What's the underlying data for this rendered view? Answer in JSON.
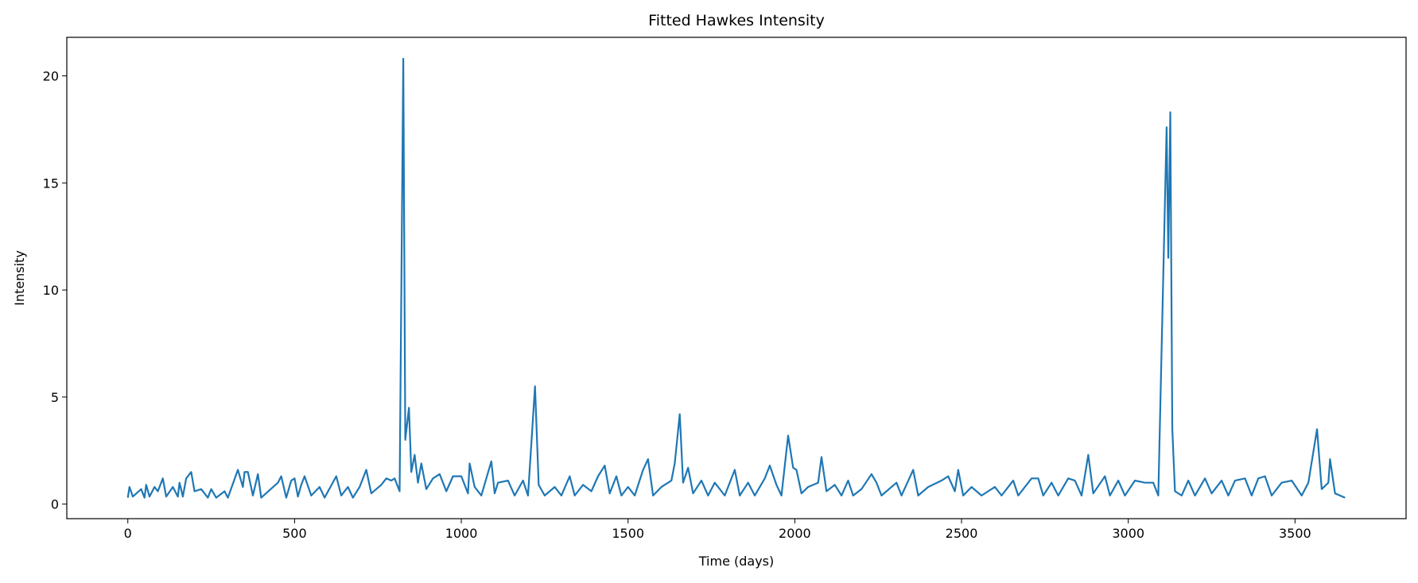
{
  "chart_data": {
    "type": "line",
    "title": "Fitted Hawkes Intensity",
    "x_label": "Time (days)",
    "y_label": "Intensity",
    "x": [
      0,
      5,
      15,
      40,
      50,
      55,
      65,
      80,
      90,
      105,
      115,
      135,
      150,
      155,
      165,
      175,
      190,
      200,
      220,
      240,
      250,
      265,
      290,
      300,
      330,
      345,
      350,
      360,
      375,
      390,
      400,
      450,
      460,
      475,
      490,
      500,
      510,
      520,
      530,
      550,
      575,
      590,
      625,
      640,
      660,
      675,
      695,
      715,
      730,
      760,
      775,
      790,
      800,
      815,
      826,
      832,
      843,
      850,
      860,
      870,
      880,
      895,
      915,
      935,
      955,
      975,
      1000,
      1020,
      1025,
      1040,
      1060,
      1090,
      1100,
      1110,
      1140,
      1160,
      1185,
      1200,
      1221,
      1232,
      1250,
      1280,
      1300,
      1325,
      1340,
      1365,
      1390,
      1410,
      1430,
      1445,
      1465,
      1480,
      1500,
      1520,
      1545,
      1560,
      1575,
      1600,
      1630,
      1640,
      1655,
      1665,
      1680,
      1695,
      1720,
      1740,
      1760,
      1790,
      1820,
      1835,
      1860,
      1880,
      1910,
      1925,
      1945,
      1960,
      1980,
      1995,
      2005,
      2020,
      2040,
      2070,
      2080,
      2095,
      2120,
      2140,
      2160,
      2175,
      2200,
      2230,
      2245,
      2260,
      2305,
      2320,
      2355,
      2370,
      2400,
      2440,
      2460,
      2480,
      2490,
      2505,
      2530,
      2560,
      2600,
      2620,
      2655,
      2670,
      2710,
      2730,
      2745,
      2770,
      2790,
      2820,
      2840,
      2860,
      2880,
      2895,
      2930,
      2945,
      2970,
      2990,
      3020,
      3050,
      3075,
      3090,
      3115,
      3120,
      3126,
      3132,
      3140,
      3160,
      3180,
      3200,
      3230,
      3250,
      3280,
      3300,
      3320,
      3350,
      3370,
      3390,
      3410,
      3430,
      3460,
      3490,
      3520,
      3540,
      3566,
      3580,
      3600,
      3605,
      3620,
      3650
    ],
    "series": [
      {
        "name": "Intensity",
        "color": "#1f77b4",
        "values": [
          0.3,
          0.8,
          0.35,
          0.7,
          0.3,
          0.9,
          0.35,
          0.8,
          0.6,
          1.2,
          0.35,
          0.8,
          0.35,
          1.0,
          0.35,
          1.2,
          1.5,
          0.6,
          0.7,
          0.3,
          0.7,
          0.3,
          0.6,
          0.3,
          1.6,
          0.8,
          1.5,
          1.5,
          0.4,
          1.4,
          0.3,
          1.0,
          1.3,
          0.3,
          1.1,
          1.2,
          0.35,
          0.9,
          1.3,
          0.4,
          0.8,
          0.3,
          1.3,
          0.4,
          0.8,
          0.3,
          0.8,
          1.6,
          0.5,
          0.9,
          1.2,
          1.1,
          1.2,
          0.6,
          20.8,
          3,
          4.5,
          1.5,
          2.3,
          1,
          1.9,
          0.7,
          1.2,
          1.4,
          0.6,
          1.3,
          1.3,
          0.5,
          1.9,
          0.8,
          0.4,
          2.0,
          0.5,
          1.0,
          1.1,
          0.4,
          1.1,
          0.4,
          5.5,
          0.9,
          0.4,
          0.8,
          0.4,
          1.3,
          0.4,
          0.9,
          0.6,
          1.3,
          1.8,
          0.5,
          1.3,
          0.4,
          0.8,
          0.4,
          1.6,
          2.1,
          0.4,
          0.8,
          1.1,
          1.9,
          4.2,
          1.0,
          1.7,
          0.5,
          1.1,
          0.4,
          1.0,
          0.4,
          1.6,
          0.4,
          1.0,
          0.4,
          1.2,
          1.8,
          0.9,
          0.4,
          3.2,
          1.7,
          1.6,
          0.5,
          0.8,
          1.0,
          2.2,
          0.6,
          0.9,
          0.4,
          1.1,
          0.4,
          0.7,
          1.4,
          1.0,
          0.4,
          1.0,
          0.4,
          1.6,
          0.4,
          0.8,
          1.1,
          1.3,
          0.6,
          1.6,
          0.4,
          0.8,
          0.4,
          0.8,
          0.4,
          1.1,
          0.4,
          1.2,
          1.2,
          0.4,
          1.0,
          0.4,
          1.2,
          1.1,
          0.4,
          2.3,
          0.5,
          1.3,
          0.4,
          1.1,
          0.4,
          1.1,
          1.0,
          1.0,
          0.4,
          17.6,
          11.5,
          18.3,
          3.5,
          0.6,
          0.4,
          1.1,
          0.4,
          1.2,
          0.5,
          1.1,
          0.4,
          1.1,
          1.2,
          0.4,
          1.2,
          1.3,
          0.4,
          1.0,
          1.1,
          0.4,
          1.0,
          3.5,
          0.7,
          1.0,
          2.1,
          0.5,
          0.3
        ]
      }
    ],
    "xlim": [
      -183,
      3833
    ],
    "ylim": [
      -0.68,
      21.8
    ],
    "xticks": [
      0,
      500,
      1000,
      1500,
      2000,
      2500,
      3000,
      3500
    ],
    "yticks": [
      0,
      5,
      10,
      15,
      20
    ]
  }
}
